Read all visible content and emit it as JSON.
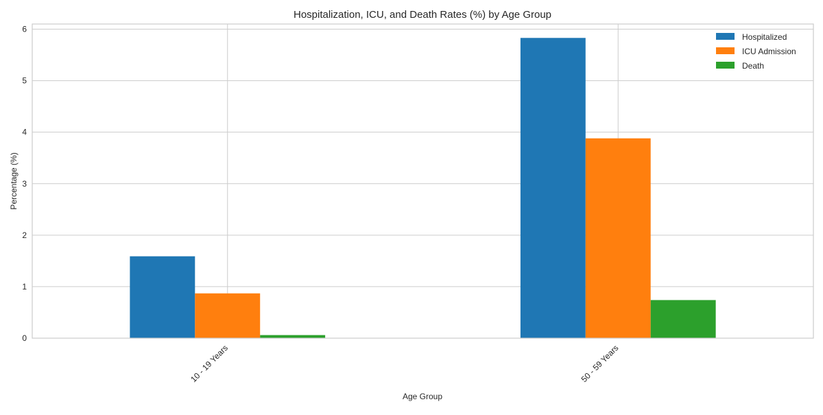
{
  "chart_data": {
    "type": "bar",
    "title": "Hospitalization, ICU, and Death Rates (%) by Age Group",
    "xlabel": "Age Group",
    "ylabel": "Percentage (%)",
    "categories": [
      "10 - 19 Years",
      "50 - 59 Years"
    ],
    "series": [
      {
        "name": "Hospitalized",
        "color": "#1f77b4",
        "values": [
          1.59,
          5.83
        ]
      },
      {
        "name": "ICU Admission",
        "color": "#ff7f0e",
        "values": [
          0.87,
          3.88
        ]
      },
      {
        "name": "Death",
        "color": "#2ca02c",
        "values": [
          0.06,
          0.74
        ]
      }
    ],
    "ylim": [
      0,
      6.1
    ],
    "yticks": [
      0,
      1,
      2,
      3,
      4,
      5,
      6
    ],
    "grid": true,
    "legend_position": "top-right"
  }
}
